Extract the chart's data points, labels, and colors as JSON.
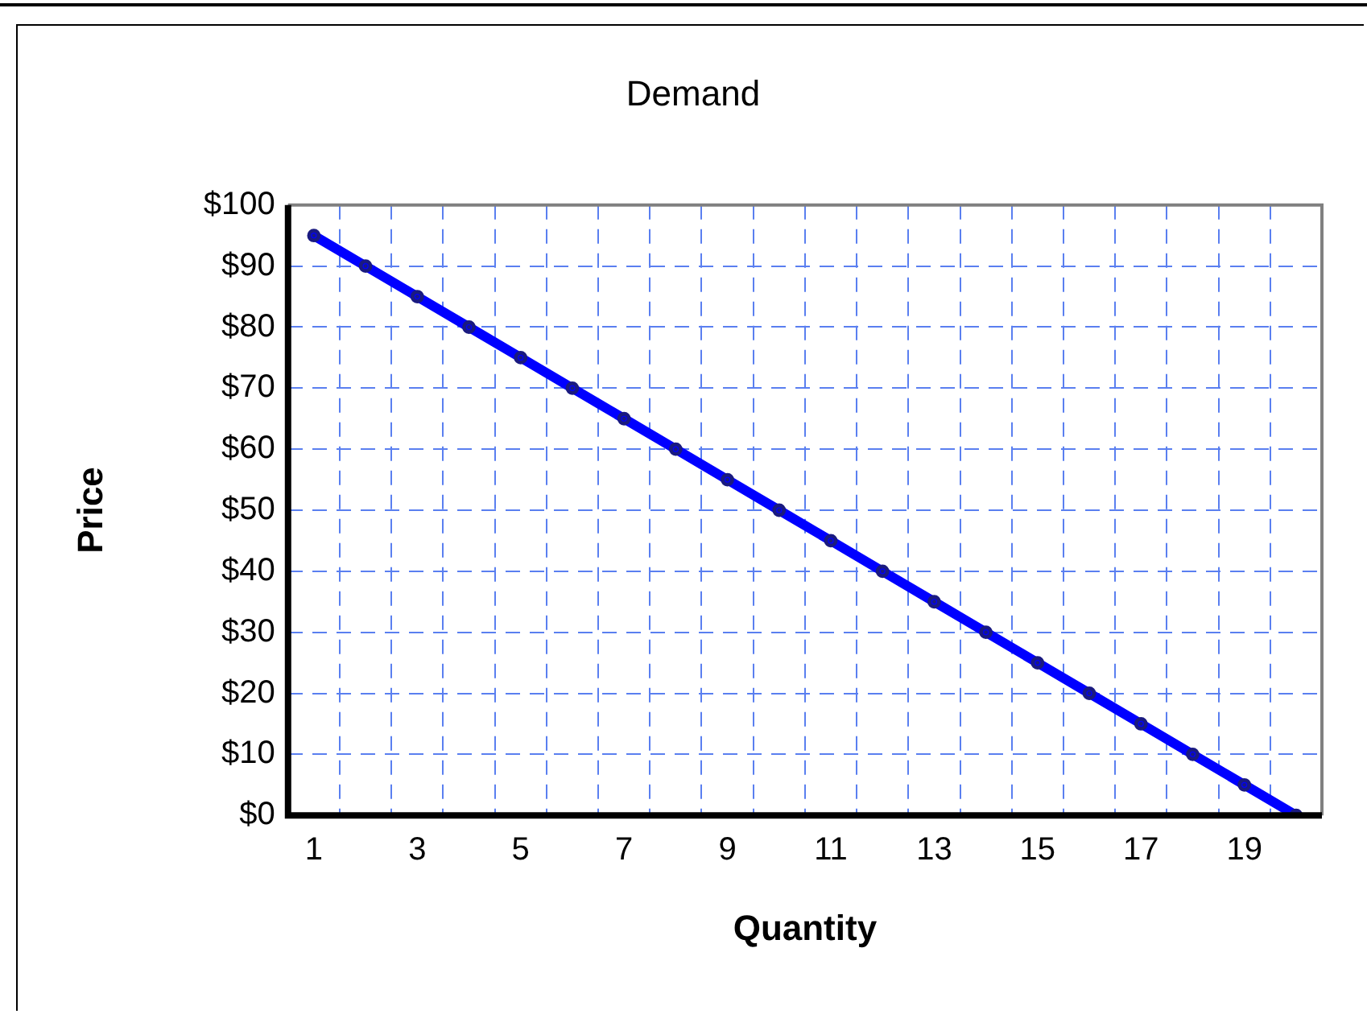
{
  "chart_data": {
    "type": "line",
    "title": "Demand",
    "xlabel": "Quantity",
    "ylabel": "Price",
    "x": [
      1,
      2,
      3,
      4,
      5,
      6,
      7,
      8,
      9,
      10,
      11,
      12,
      13,
      14,
      15,
      16,
      17,
      18,
      19,
      20
    ],
    "series": [
      {
        "color": "#0000ff",
        "values": [
          95,
          90,
          85,
          80,
          75,
          70,
          65,
          60,
          55,
          50,
          45,
          40,
          35,
          30,
          25,
          20,
          15,
          10,
          5,
          0
        ]
      }
    ],
    "xlim": [
      0.5,
      20.5
    ],
    "xticks": [
      {
        "value": 0.5,
        "label": null
      },
      1,
      {
        "value": 1.5,
        "label": null
      },
      {
        "value": 2.5,
        "label": null
      },
      3,
      {
        "value": 3.5,
        "label": null
      },
      {
        "value": 4.5,
        "label": null
      },
      5,
      {
        "value": 5.5,
        "label": null
      },
      {
        "value": 6.5,
        "label": null
      },
      7,
      {
        "value": 7.5,
        "label": null
      },
      {
        "value": 8.5,
        "label": null
      },
      9,
      {
        "value": 9.5,
        "label": null
      },
      {
        "value": 10.5,
        "label": null
      },
      11,
      {
        "value": 11.5,
        "label": null
      },
      {
        "value": 12.5,
        "label": null
      },
      13,
      {
        "value": 13.5,
        "label": null
      },
      {
        "value": 14.5,
        "label": null
      },
      15,
      {
        "value": 15.5,
        "label": null
      },
      {
        "value": 16.5,
        "label": null
      },
      17,
      {
        "value": 17.5,
        "label": null
      },
      {
        "value": 18.5,
        "label": null
      },
      19,
      {
        "value": 19.5,
        "label": null
      },
      {
        "value": 20.5,
        "label": null
      }
    ],
    "ylim": [
      0,
      100
    ],
    "yticks": [
      {
        "value": 0,
        "label": "$0"
      },
      {
        "value": 10,
        "label": "$10"
      },
      {
        "value": 20,
        "label": "$20"
      },
      {
        "value": 30,
        "label": "$30"
      },
      {
        "value": 40,
        "label": "$40"
      },
      {
        "value": 50,
        "label": "$50"
      },
      {
        "value": 60,
        "label": "$60"
      },
      {
        "value": 70,
        "label": "$70"
      },
      {
        "value": 80,
        "label": "$80"
      },
      {
        "value": 90,
        "label": "$90"
      },
      {
        "value": 100,
        "label": "$100"
      }
    ],
    "grid": true,
    "legend": false,
    "marker": "circle",
    "line_style": "solid"
  }
}
